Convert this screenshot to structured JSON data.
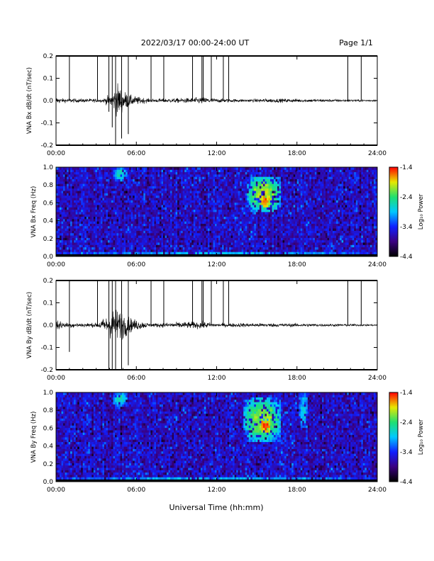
{
  "header": {
    "date_range": "2022/03/17  00:00-24:00 UT",
    "page": "Page 1/1"
  },
  "x_axis": {
    "label": "Universal Time (hh:mm)",
    "ticks": [
      "00:00",
      "06:00",
      "12:00",
      "18:00",
      "24:00"
    ]
  },
  "colorbar": {
    "label": "Log₁₀ Power",
    "ticks": [
      "-1.4",
      "-2.4",
      "-3.4",
      "-4.4"
    ],
    "colors": [
      "#000000",
      "#3b0080",
      "#1020ff",
      "#00c8ff",
      "#20e070",
      "#e8e800",
      "#ff0000"
    ]
  },
  "chart_data": [
    {
      "type": "line",
      "ylabel": "VNA Bx dB/dt (nT/sec)",
      "xlim": [
        0,
        24
      ],
      "ylim": [
        -0.2,
        0.2
      ],
      "yticks": [
        "0.2",
        "0.1",
        "0.0",
        "-0.1",
        "-0.2"
      ],
      "baseline": 0.0,
      "noise_amplitude": [
        {
          "x": 0.0,
          "y": 0.02
        },
        {
          "x": 0.5,
          "y": 0.012
        },
        {
          "x": 3.5,
          "y": 0.01
        },
        {
          "x": 4.3,
          "y": 0.05
        },
        {
          "x": 4.6,
          "y": 0.1
        },
        {
          "x": 5.0,
          "y": 0.06
        },
        {
          "x": 5.6,
          "y": 0.03
        },
        {
          "x": 7.0,
          "y": 0.01
        },
        {
          "x": 10.0,
          "y": 0.015
        },
        {
          "x": 11.0,
          "y": 0.02
        },
        {
          "x": 12.0,
          "y": 0.012
        },
        {
          "x": 14.0,
          "y": 0.008
        },
        {
          "x": 16.0,
          "y": 0.012
        },
        {
          "x": 24.0,
          "y": 0.005
        }
      ],
      "spikes_hours": [
        1.0,
        3.1,
        3.95,
        4.2,
        4.45,
        4.9,
        5.4,
        7.1,
        8.05,
        10.2,
        10.9,
        11.0,
        11.6,
        12.5,
        12.9,
        21.8,
        22.8
      ],
      "spikes_min_y": [
        null,
        null,
        -0.05,
        -0.12,
        -0.2,
        -0.17,
        -0.15
      ]
    },
    {
      "type": "heatmap",
      "ylabel": "VNA Bx Freq (Hz)",
      "xlim": [
        0,
        24
      ],
      "ylim": [
        0.0,
        1.0
      ],
      "yticks": [
        "1.0",
        "0.8",
        "0.6",
        "0.4",
        "0.2",
        "0.0"
      ],
      "zlim": [
        -4.4,
        -1.4
      ],
      "features": [
        {
          "x": [
            4.3,
            5.3
          ],
          "y": [
            0.85,
            1.0
          ],
          "log_power": -2.6
        },
        {
          "x": [
            14.3,
            16.8
          ],
          "y": [
            0.5,
            0.9
          ],
          "log_power": -2.0
        },
        {
          "x": [
            15.3,
            16.0
          ],
          "y": [
            0.55,
            0.68
          ],
          "log_power": -1.5
        },
        {
          "x": [
            0,
            24
          ],
          "y": [
            0.0,
            0.05
          ],
          "log_power": -2.8
        }
      ]
    },
    {
      "type": "line",
      "ylabel": "VNA By dB/dt (nT/sec)",
      "xlim": [
        0,
        24
      ],
      "ylim": [
        -0.2,
        0.2
      ],
      "yticks": [
        "0.2",
        "0.1",
        "0.0",
        "-0.1",
        "-0.2"
      ],
      "baseline": 0.0,
      "noise_amplitude": [
        {
          "x": 0.0,
          "y": 0.04
        },
        {
          "x": 0.6,
          "y": 0.015
        },
        {
          "x": 3.0,
          "y": 0.012
        },
        {
          "x": 3.8,
          "y": 0.05
        },
        {
          "x": 4.3,
          "y": 0.1
        },
        {
          "x": 5.0,
          "y": 0.08
        },
        {
          "x": 5.6,
          "y": 0.04
        },
        {
          "x": 7.0,
          "y": 0.01
        },
        {
          "x": 10.0,
          "y": 0.02
        },
        {
          "x": 11.0,
          "y": 0.02
        },
        {
          "x": 12.0,
          "y": 0.01
        },
        {
          "x": 14.0,
          "y": 0.012
        },
        {
          "x": 18.0,
          "y": 0.01
        },
        {
          "x": 24.0,
          "y": 0.005
        }
      ],
      "spikes_hours": [
        1.0,
        3.1,
        3.95,
        4.2,
        4.45,
        4.9,
        5.4,
        7.1,
        8.05,
        10.2,
        10.9,
        11.0,
        11.6,
        12.5,
        12.9,
        21.8,
        22.8
      ],
      "spikes_min_y": [
        -0.12,
        null,
        -0.2,
        -0.2,
        -0.2,
        -0.2,
        -0.18
      ]
    },
    {
      "type": "heatmap",
      "ylabel": "VNA By Freq (Hz)",
      "xlim": [
        0,
        24
      ],
      "ylim": [
        0.0,
        1.0
      ],
      "yticks": [
        "1.0",
        "0.8",
        "0.6",
        "0.4",
        "0.2",
        "0.0"
      ],
      "zlim": [
        -4.4,
        -1.4
      ],
      "features": [
        {
          "x": [
            4.3,
            5.3
          ],
          "y": [
            0.85,
            1.0
          ],
          "log_power": -2.6
        },
        {
          "x": [
            14.0,
            16.8
          ],
          "y": [
            0.45,
            0.95
          ],
          "log_power": -2.1
        },
        {
          "x": [
            15.3,
            16.0
          ],
          "y": [
            0.55,
            0.7
          ],
          "log_power": -1.5
        },
        {
          "x": [
            18.2,
            18.8
          ],
          "y": [
            0.6,
            1.0
          ],
          "log_power": -2.8
        },
        {
          "x": [
            0,
            24
          ],
          "y": [
            0.0,
            0.05
          ],
          "log_power": -2.8
        }
      ]
    }
  ]
}
